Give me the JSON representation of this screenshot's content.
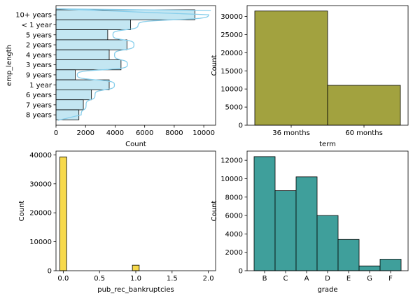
{
  "chart_data": [
    {
      "type": "bar",
      "orientation": "horizontal",
      "xlabel": "Count",
      "ylabel": "emp_length",
      "categories": [
        "10+ years",
        "< 1 year",
        "5 years",
        "2 years",
        "4 years",
        "3 years",
        "9 years",
        "1 year",
        "6 years",
        "7 years",
        "8 years"
      ],
      "values": [
        9400,
        5050,
        3500,
        4800,
        3600,
        4400,
        1300,
        3600,
        2400,
        1850,
        1550
      ],
      "xlim": [
        0,
        10800
      ],
      "xticks": [
        0,
        2000,
        4000,
        6000,
        8000,
        10000
      ],
      "kde": true,
      "colors": {
        "fill": "#c3e6f2",
        "edge": "#000000",
        "kde": "#87ceeb"
      }
    },
    {
      "type": "bar",
      "xlabel": "term",
      "ylabel": "Count",
      "categories": [
        "36 months",
        "60 months"
      ],
      "values": [
        31500,
        11000
      ],
      "ylim": [
        0,
        33000
      ],
      "yticks": [
        0,
        5000,
        10000,
        15000,
        20000,
        25000,
        30000
      ],
      "colors": {
        "fill": "#a2a23f",
        "edge": "#000000"
      }
    },
    {
      "type": "bar",
      "xlabel": "pub_rec_bankruptcies",
      "ylabel": "Count",
      "x": [
        0.0,
        1.0
      ],
      "values": [
        39300,
        1900
      ],
      "bin_width": 0.1,
      "xlim": [
        -0.1,
        2.1
      ],
      "ylim": [
        0,
        41300
      ],
      "xticks": [
        0.0,
        0.5,
        1.0,
        1.5,
        2.0
      ],
      "yticks": [
        0,
        10000,
        20000,
        30000,
        40000
      ],
      "colors": {
        "fill": "#f7d94b",
        "edge": "#000000"
      }
    },
    {
      "type": "bar",
      "xlabel": "grade",
      "ylabel": "Count",
      "categories": [
        "B",
        "C",
        "A",
        "D",
        "E",
        "G",
        "F"
      ],
      "values": [
        12400,
        8700,
        10200,
        6000,
        3400,
        520,
        1250
      ],
      "ylim": [
        0,
        13000
      ],
      "yticks": [
        0,
        2000,
        4000,
        6000,
        8000,
        10000,
        12000
      ],
      "colors": {
        "fill": "#3f9f9b",
        "edge": "#000000"
      }
    }
  ]
}
